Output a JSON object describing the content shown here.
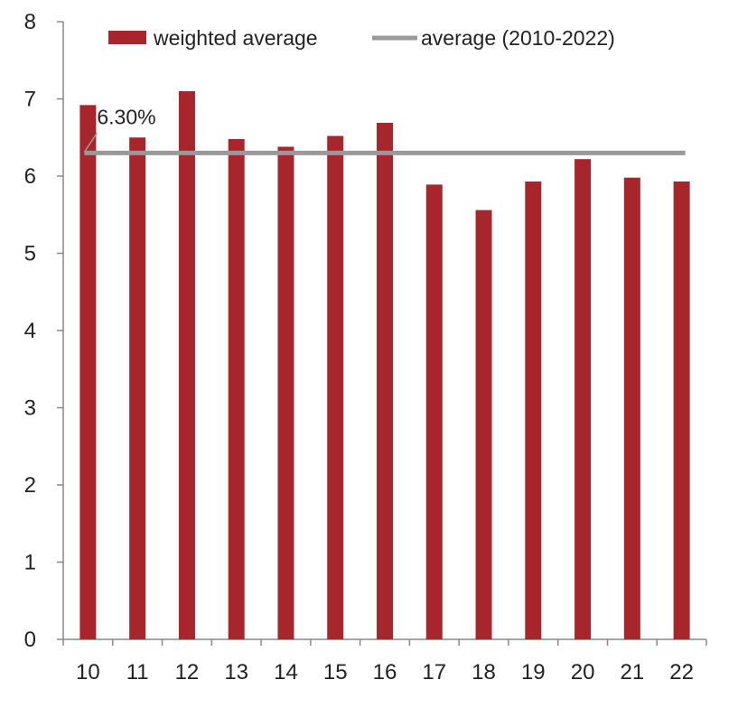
{
  "chart_data": {
    "type": "bar",
    "categories": [
      "10",
      "11",
      "12",
      "13",
      "14",
      "15",
      "16",
      "17",
      "18",
      "19",
      "20",
      "21",
      "22"
    ],
    "series": [
      {
        "name": "weighted average",
        "color": "#a6262b",
        "values": [
          6.92,
          6.5,
          7.1,
          6.48,
          6.38,
          6.52,
          6.69,
          5.89,
          5.56,
          5.93,
          6.22,
          5.98,
          5.93
        ]
      }
    ],
    "reference_line": {
      "name": "average (2010-2022)",
      "value": 6.3,
      "color": "#999999"
    },
    "annotation": {
      "text": "6.30%"
    },
    "ylim": [
      0,
      8
    ],
    "yticks": [
      "0",
      "1",
      "2",
      "3",
      "4",
      "5",
      "6",
      "7",
      "8"
    ],
    "grid": false,
    "legend_position": "top"
  }
}
